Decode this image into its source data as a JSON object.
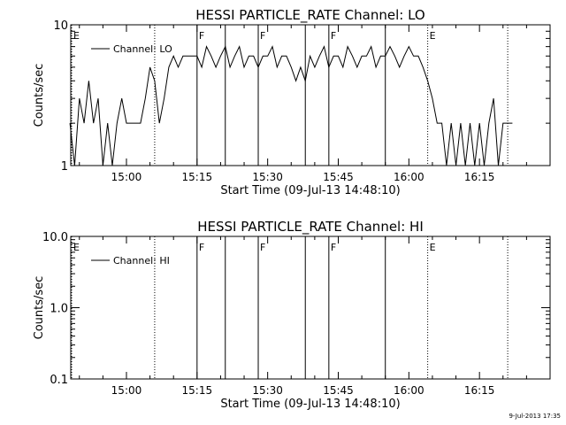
{
  "footer": {
    "timestamp": "9-Jul-2013 17:35"
  },
  "chart_data": [
    {
      "type": "line",
      "title": "HESSI PARTICLE_RATE Channel: LO",
      "xlabel": "Start Time (09-Jul-13 14:48:10)",
      "ylabel": "Counts/sec",
      "yscale": "log",
      "xlim": [
        "14:48:10",
        "16:30:00"
      ],
      "ylim": [
        1,
        10
      ],
      "xticks": [
        "15:00",
        "15:15",
        "15:30",
        "15:45",
        "16:00",
        "16:15"
      ],
      "yticks": [
        "1",
        "10"
      ],
      "legend": {
        "placement": "top-left",
        "entries": [
          "Channel: LO"
        ]
      },
      "grid": false,
      "event_markers": [
        {
          "time": "14:48:10",
          "label": "E",
          "style": "dotted"
        },
        {
          "time": "15:06",
          "label": "",
          "style": "dotted"
        },
        {
          "time": "15:15",
          "label": "F",
          "style": "solid"
        },
        {
          "time": "15:21",
          "label": "",
          "style": "solid"
        },
        {
          "time": "15:28",
          "label": "F",
          "style": "solid"
        },
        {
          "time": "15:38",
          "label": "",
          "style": "solid"
        },
        {
          "time": "15:43",
          "label": "F",
          "style": "solid"
        },
        {
          "time": "15:55",
          "label": "",
          "style": "solid"
        },
        {
          "time": "16:04",
          "label": "E",
          "style": "dotted"
        },
        {
          "time": "16:21",
          "label": "",
          "style": "dotted"
        }
      ],
      "series": [
        {
          "name": "Channel: LO",
          "x": [
            "14:48",
            "14:49",
            "14:50",
            "14:51",
            "14:52",
            "14:53",
            "14:54",
            "14:55",
            "14:56",
            "14:57",
            "14:58",
            "14:59",
            "15:00",
            "15:01",
            "15:02",
            "15:03",
            "15:04",
            "15:05",
            "15:06",
            "15:07",
            "15:08",
            "15:09",
            "15:10",
            "15:11",
            "15:12",
            "15:13",
            "15:14",
            "15:15",
            "15:16",
            "15:17",
            "15:18",
            "15:19",
            "15:20",
            "15:21",
            "15:22",
            "15:23",
            "15:24",
            "15:25",
            "15:26",
            "15:27",
            "15:28",
            "15:29",
            "15:30",
            "15:31",
            "15:32",
            "15:33",
            "15:34",
            "15:35",
            "15:36",
            "15:37",
            "15:38",
            "15:39",
            "15:40",
            "15:41",
            "15:42",
            "15:43",
            "15:44",
            "15:45",
            "15:46",
            "15:47",
            "15:48",
            "15:49",
            "15:50",
            "15:51",
            "15:52",
            "15:53",
            "15:54",
            "15:55",
            "15:56",
            "15:57",
            "15:58",
            "15:59",
            "16:00",
            "16:01",
            "16:02",
            "16:03",
            "16:04",
            "16:05",
            "16:06",
            "16:07",
            "16:08",
            "16:09",
            "16:10",
            "16:11",
            "16:12",
            "16:13",
            "16:14",
            "16:15",
            "16:16",
            "16:17",
            "16:18",
            "16:19",
            "16:20",
            "16:21",
            "16:22"
          ],
          "values": [
            2,
            1,
            3,
            2,
            4,
            2,
            3,
            1,
            2,
            1,
            2,
            3,
            2,
            2,
            2,
            2,
            3,
            5,
            4,
            2,
            3,
            5,
            6,
            5,
            6,
            6,
            6,
            6,
            5,
            7,
            6,
            5,
            6,
            7,
            5,
            6,
            7,
            5,
            6,
            6,
            5,
            6,
            6,
            7,
            5,
            6,
            6,
            5,
            4,
            5,
            4,
            6,
            5,
            6,
            7,
            5,
            6,
            6,
            5,
            7,
            6,
            5,
            6,
            6,
            7,
            5,
            6,
            6,
            7,
            6,
            5,
            6,
            7,
            6,
            6,
            5,
            4,
            3,
            2,
            2,
            1,
            2,
            1,
            2,
            1,
            2,
            1,
            2,
            1,
            2,
            3,
            1,
            2,
            2,
            2
          ]
        }
      ]
    },
    {
      "type": "line",
      "title": "HESSI PARTICLE_RATE Channel: HI",
      "xlabel": "Start Time (09-Jul-13 14:48:10)",
      "ylabel": "Counts/sec",
      "yscale": "log",
      "xlim": [
        "14:48:10",
        "16:30:00"
      ],
      "ylim": [
        0.1,
        10
      ],
      "xticks": [
        "15:00",
        "15:15",
        "15:30",
        "15:45",
        "16:00",
        "16:15"
      ],
      "yticks": [
        "0.1",
        "1.0",
        "10.0"
      ],
      "legend": {
        "placement": "top-left",
        "entries": [
          "Channel: HI"
        ]
      },
      "grid": false,
      "event_markers": [
        {
          "time": "14:48:10",
          "label": "E",
          "style": "dotted"
        },
        {
          "time": "15:06",
          "label": "",
          "style": "dotted"
        },
        {
          "time": "15:15",
          "label": "F",
          "style": "solid"
        },
        {
          "time": "15:21",
          "label": "",
          "style": "solid"
        },
        {
          "time": "15:28",
          "label": "F",
          "style": "solid"
        },
        {
          "time": "15:38",
          "label": "",
          "style": "solid"
        },
        {
          "time": "15:43",
          "label": "F",
          "style": "solid"
        },
        {
          "time": "15:55",
          "label": "",
          "style": "solid"
        },
        {
          "time": "16:04",
          "label": "E",
          "style": "dotted"
        },
        {
          "time": "16:21",
          "label": "",
          "style": "dotted"
        }
      ],
      "series": [
        {
          "name": "Channel: HI",
          "x": [],
          "values": []
        }
      ]
    }
  ]
}
